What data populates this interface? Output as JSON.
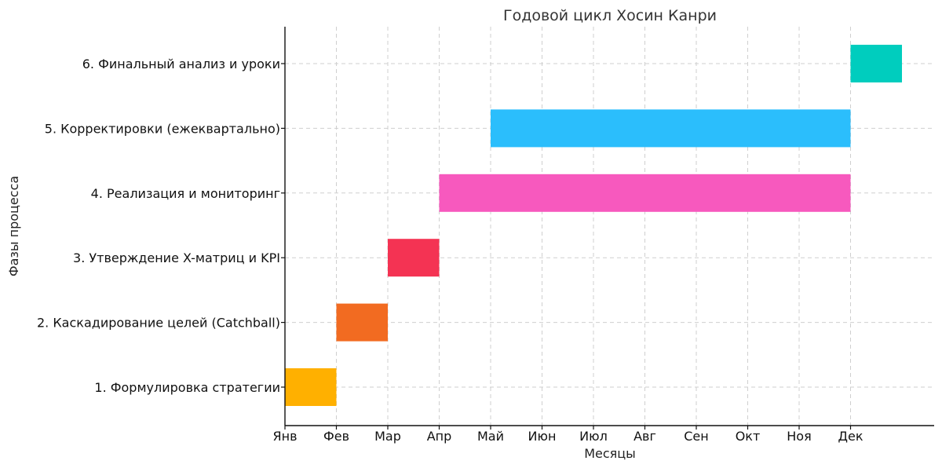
{
  "chart_data": {
    "type": "bar",
    "orientation": "horizontal-gantt",
    "title": "Годовой цикл Хосин Канри",
    "xlabel": "Месяцы",
    "ylabel": "Фазы процесса",
    "x_ticks": [
      "Янв",
      "Фев",
      "Мар",
      "Апр",
      "Май",
      "Июн",
      "Июл",
      "Авг",
      "Сен",
      "Окт",
      "Ноя",
      "Дек"
    ],
    "xlim": [
      0,
      12.6
    ],
    "grid": true,
    "tasks": [
      {
        "label": "1. Формулировка стратегии",
        "start": 0,
        "duration": 1,
        "color": "#FFB000"
      },
      {
        "label": "2. Каскадирование целей (Catchball)",
        "start": 1,
        "duration": 1,
        "color": "#F26B21"
      },
      {
        "label": "3. Утверждение X-матриц и KPI",
        "start": 2,
        "duration": 1,
        "color": "#F43353"
      },
      {
        "label": "4. Реализация и мониторинг",
        "start": 3,
        "duration": 8,
        "color": "#F759BE"
      },
      {
        "label": "5. Корректировки (ежеквартально)",
        "start": 4,
        "duration": 7,
        "color": "#2BBEFC"
      },
      {
        "label": "6. Финальный анализ и уроки",
        "start": 11,
        "duration": 1,
        "color": "#00CDBE"
      }
    ]
  }
}
